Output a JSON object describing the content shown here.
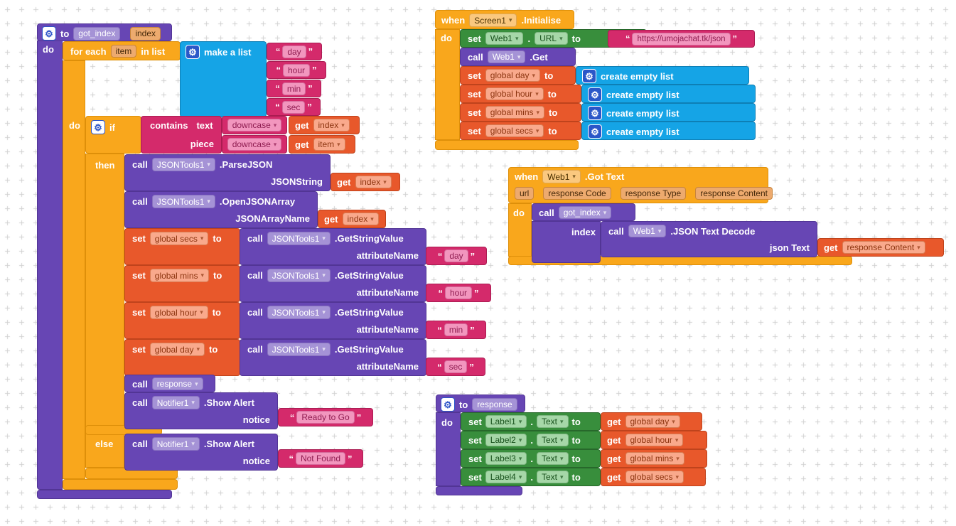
{
  "kw": {
    "to": "to",
    "do": "do",
    "if": "if",
    "then": "then",
    "else": "else",
    "when": "when",
    "set": "set",
    "call": "call",
    "get": "get",
    "dot": ".",
    "for_each": "for each",
    "in_list": "in list"
  },
  "proc_got_index": {
    "name": "got_index",
    "param": "index",
    "loop_var": "item",
    "make_list": {
      "label": "make a list",
      "items": [
        "day",
        "hour",
        "min",
        "sec"
      ]
    },
    "contains": {
      "label_contains": "contains",
      "label_text": "text",
      "label_piece": "piece",
      "downcase": "downcase",
      "index_var": "index",
      "item_var": "item"
    },
    "parse_json": {
      "component": "JSONTools1",
      "method": ".ParseJSON",
      "arg": "JSONString",
      "arg_value": "index"
    },
    "open_array": {
      "component": "JSONTools1",
      "method": ".OpenJSONArray",
      "arg": "JSONArrayName",
      "arg_value": "index"
    },
    "getstring": {
      "component": "JSONTools1",
      "method": ".GetStringValue",
      "arg": "attributeName"
    },
    "set_rows": [
      {
        "var": "global secs",
        "text": "day"
      },
      {
        "var": "global mins",
        "text": "hour"
      },
      {
        "var": "global hour",
        "text": "min"
      },
      {
        "var": "global day",
        "text": "sec"
      }
    ],
    "call_response": "response",
    "notifier": {
      "component": "Notifier1",
      "method": ".Show Alert",
      "arg": "notice"
    },
    "alert_then": "Ready to Go",
    "alert_else": "Not Found"
  },
  "screen_init": {
    "component": "Screen1",
    "event": ".Initialise",
    "set_url": {
      "component": "Web1",
      "prop": "URL",
      "value": "https://umojachat.tk/json"
    },
    "call_get": {
      "component": "Web1",
      "method": ".Get"
    },
    "create_empty_label": "create empty list",
    "vars": [
      "global day",
      "global hour",
      "global mins",
      "global secs"
    ]
  },
  "got_text": {
    "component": "Web1",
    "event": ".Got Text",
    "params": [
      "url",
      "response Code",
      "response Type",
      "response Content"
    ],
    "call_proc": {
      "name": "got_index",
      "arg": "index"
    },
    "decode": {
      "component": "Web1",
      "method": ".JSON Text Decode",
      "arg": "json Text",
      "value": "response Content"
    }
  },
  "proc_response": {
    "name": "response",
    "rows": [
      {
        "component": "Label1",
        "prop": "Text",
        "var": "global day"
      },
      {
        "component": "Label2",
        "prop": "Text",
        "var": "global hour"
      },
      {
        "component": "Label3",
        "prop": "Text",
        "var": "global mins"
      },
      {
        "component": "Label4",
        "prop": "Text",
        "var": "global secs"
      }
    ]
  },
  "colors": {
    "procedure": "#6746B4",
    "control": "#F9A71C",
    "text": "#D42A6B",
    "variables": "#E8582B",
    "component_set": "#388E3C",
    "lists": "#15A4E6",
    "gear": "#2B57C8"
  }
}
